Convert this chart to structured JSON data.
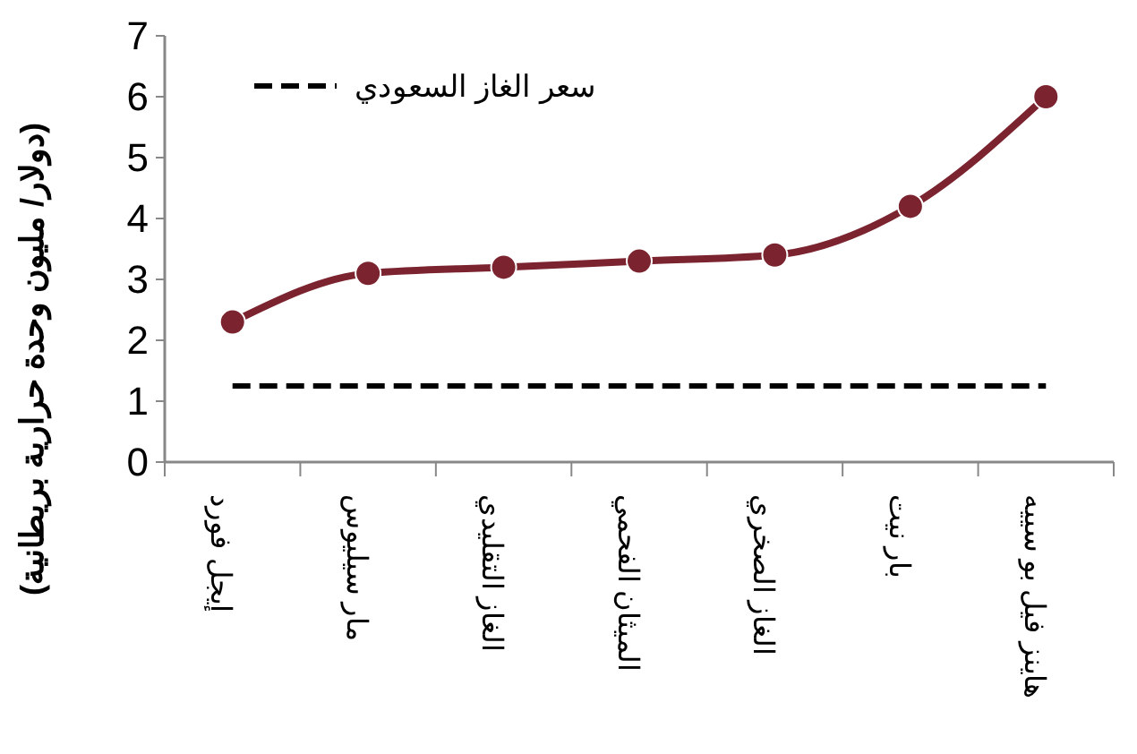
{
  "chart_data": {
    "type": "line",
    "ylabel": "(دولار/ مليون وحدة حرارية بريطانية)",
    "categories": [
      "إيجل فورد",
      "مار سيليوس",
      "الغاز التقليدي",
      "الميثان الفحمي",
      "الغاز الصخري",
      "بار نيت",
      "هاينز فيل بو سييه"
    ],
    "series": [
      {
        "color": "#7b2430",
        "values": [
          2.3,
          3.1,
          3.2,
          3.3,
          3.4,
          4.2,
          6.0
        ],
        "marker": "circle",
        "line_style": "solid"
      },
      {
        "name": "سعر الغاز السعودي",
        "color": "#000000",
        "values": [
          1.25,
          1.25,
          1.25,
          1.25,
          1.25,
          1.25,
          1.25
        ],
        "marker": "none",
        "line_style": "dashed"
      }
    ],
    "ylim": [
      0,
      7
    ],
    "yticks": [
      0,
      1,
      2,
      3,
      4,
      5,
      6,
      7
    ],
    "grid": false,
    "legend": "top left"
  }
}
